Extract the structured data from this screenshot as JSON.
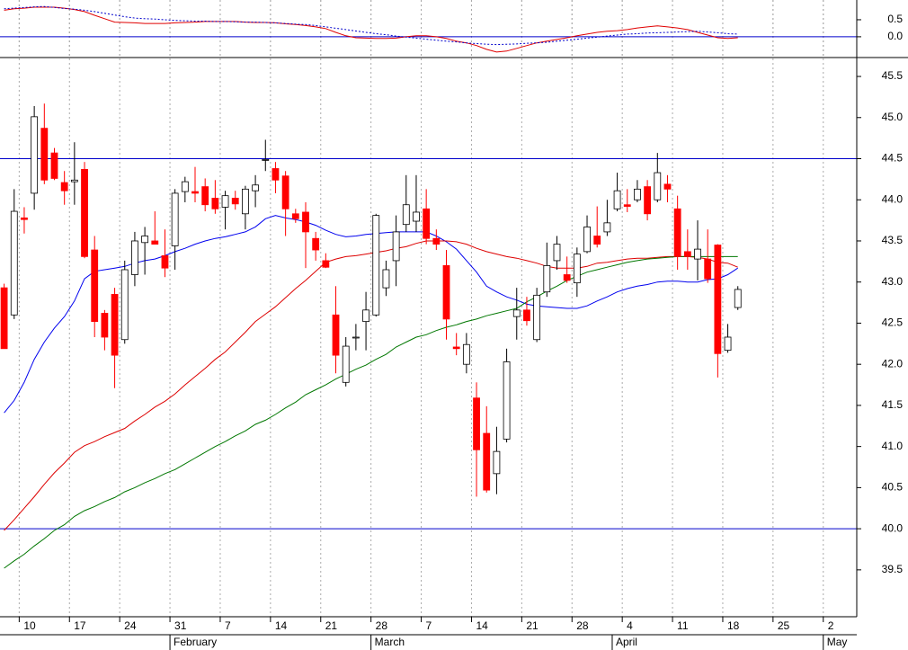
{
  "chart_data": [
    {
      "type": "line",
      "series": [
        {
          "color": "#e00000",
          "values": [
            0.78,
            0.82,
            0.84,
            0.87,
            0.87,
            0.87,
            0.84,
            0.8,
            0.74,
            0.63,
            0.53,
            0.43,
            0.42,
            0.41,
            0.39,
            0.39,
            0.39,
            0.41,
            0.42,
            0.43,
            0.45,
            0.45,
            0.45,
            0.45,
            0.43,
            0.42,
            0.42,
            0.41,
            0.38,
            0.36,
            0.33,
            0.29,
            0.24,
            0.13,
            0.03,
            -0.03,
            -0.04,
            -0.05,
            -0.05,
            -0.04,
            0,
            0.03,
            0.03,
            0,
            -0.05,
            -0.13,
            -0.18,
            -0.26,
            -0.37,
            -0.45,
            -0.42,
            -0.34,
            -0.26,
            -0.18,
            -0.13,
            -0.08,
            -0.03,
            0.03,
            0.08,
            0.13,
            0.16,
            0.18,
            0.21,
            0.26,
            0.29,
            0.32,
            0.29,
            0.26,
            0.21,
            0.13,
            0.05,
            -0.03,
            -0.05,
            -0.03,
            null,
            null,
            null,
            null,
            null,
            null,
            null,
            null,
            null,
            null,
            null
          ]
        },
        {
          "color": "#0000cc",
          "dash": true,
          "values": [
            0.82,
            0.84,
            0.86,
            0.88,
            0.89,
            0.86,
            0.83,
            0.81,
            0.78,
            0.74,
            0.69,
            0.64,
            0.59,
            0.55,
            0.53,
            0.52,
            0.5,
            0.48,
            0.47,
            0.46,
            0.46,
            0.45,
            0.45,
            0.44,
            0.43,
            0.43,
            0.42,
            0.41,
            0.39,
            0.37,
            0.36,
            0.33,
            0.29,
            0.25,
            0.21,
            0.17,
            0.13,
            0.09,
            0.06,
            0.02,
            -0.01,
            -0.04,
            -0.07,
            -0.1,
            -0.13,
            -0.15,
            -0.18,
            -0.2,
            -0.22,
            -0.23,
            -0.22,
            -0.21,
            -0.19,
            -0.18,
            -0.16,
            -0.13,
            -0.1,
            -0.07,
            -0.04,
            -0.01,
            0.02,
            0.05,
            0.08,
            0.09,
            0.11,
            0.12,
            0.13,
            0.14,
            0.15,
            0.16,
            0.14,
            0.12,
            0.09,
            0.08,
            null,
            null,
            null,
            null,
            null,
            null,
            null,
            null,
            null,
            null,
            null
          ]
        }
      ],
      "ylim": [
        -0.61,
        1.08
      ],
      "yticks": [
        0.5,
        {
          "value": 0,
          "label": "0.0"
        }
      ],
      "hlines": [
        0
      ],
      "hline_color": "#0000cc",
      "grid": "x"
    },
    {
      "type": "candlestick",
      "categories": [
        null,
        null,
        "10",
        null,
        null,
        null,
        null,
        "17",
        null,
        null,
        null,
        null,
        "24",
        null,
        null,
        null,
        null,
        "31",
        null,
        null,
        null,
        null,
        "7",
        null,
        null,
        null,
        null,
        "14",
        null,
        null,
        null,
        null,
        "21",
        null,
        null,
        null,
        null,
        "28",
        null,
        null,
        null,
        null,
        "7",
        null,
        null,
        null,
        null,
        "14",
        null,
        null,
        null,
        null,
        "21",
        null,
        null,
        null,
        null,
        "28",
        null,
        null,
        null,
        null,
        "4",
        null,
        null,
        null,
        null,
        "11",
        null,
        null,
        null,
        null,
        "18",
        null,
        null,
        null,
        null,
        "25",
        null,
        null,
        null,
        null,
        "2",
        null,
        null
      ],
      "month_labels": [
        null,
        null,
        null,
        null,
        null,
        null,
        null,
        null,
        null,
        null,
        null,
        null,
        null,
        null,
        null,
        null,
        null,
        "February",
        null,
        null,
        null,
        null,
        null,
        null,
        null,
        null,
        null,
        null,
        null,
        null,
        null,
        null,
        null,
        null,
        null,
        null,
        null,
        "March",
        null,
        null,
        null,
        null,
        null,
        null,
        null,
        null,
        null,
        null,
        null,
        null,
        null,
        null,
        null,
        null,
        null,
        null,
        null,
        null,
        null,
        null,
        null,
        "April",
        null,
        null,
        null,
        null,
        null,
        null,
        null,
        null,
        null,
        null,
        null,
        null,
        null,
        null,
        null,
        null,
        null,
        null,
        null,
        null,
        "May",
        null,
        null
      ],
      "open": [
        42.93,
        42.6,
        43.78,
        44.08,
        44.87,
        44.57,
        44.21,
        44.22,
        44.37,
        43.39,
        42.62,
        42.85,
        42.3,
        43.09,
        43.48,
        43.5,
        43.32,
        43.44,
        44.1,
        44.1,
        44.16,
        44.02,
        43.91,
        44.02,
        43.83,
        44.11,
        44.48,
        44.38,
        44.29,
        43.83,
        43.85,
        43.53,
        43.26,
        42.6,
        41.78,
        42.32,
        42.52,
        42.6,
        42.93,
        43.26,
        43.7,
        43.74,
        43.89,
        43.53,
        43.2,
        42.21,
        42.0,
        41.59,
        41.16,
        40.67,
        41.09,
        42.58,
        42.66,
        42.3,
        42.88,
        43.26,
        43.09,
        42.99,
        43.37,
        43.56,
        43.61,
        43.89,
        43.94,
        44.0,
        44.16,
        44.0,
        44.19,
        43.89,
        43.37,
        43.28,
        43.28,
        43.45,
        42.17,
        42.69,
        null,
        null,
        null,
        null,
        null,
        null,
        null,
        null,
        null,
        null,
        null
      ],
      "high": [
        42.98,
        44.13,
        43.91,
        45.14,
        45.17,
        44.63,
        44.35,
        44.7,
        44.46,
        43.56,
        42.66,
        42.93,
        43.26,
        43.61,
        43.67,
        43.86,
        43.64,
        44.13,
        44.28,
        44.4,
        44.26,
        44.24,
        44.11,
        44.11,
        44.17,
        44.3,
        44.73,
        44.46,
        44.35,
        43.89,
        43.97,
        43.61,
        43.35,
        42.95,
        42.33,
        42.49,
        42.88,
        43.83,
        43.26,
        43.81,
        44.3,
        44.3,
        44.13,
        43.64,
        43.39,
        42.38,
        42.38,
        41.78,
        41.49,
        41.24,
        42.19,
        42.93,
        42.82,
        42.93,
        43.48,
        43.56,
        43.31,
        43.42,
        43.81,
        43.92,
        44.0,
        44.33,
        44.13,
        44.24,
        44.24,
        44.57,
        44.3,
        44.05,
        43.64,
        43.75,
        43.64,
        43.46,
        42.49,
        42.95,
        null,
        null,
        null,
        null,
        null,
        null,
        null,
        null,
        null,
        null,
        null
      ],
      "low": [
        42.19,
        42.55,
        43.59,
        43.88,
        44.19,
        44.24,
        43.94,
        43.94,
        43.29,
        42.33,
        42.17,
        41.71,
        42.25,
        42.95,
        43.09,
        43.46,
        43.06,
        43.15,
        43.97,
        43.97,
        43.86,
        43.83,
        43.64,
        43.88,
        43.64,
        43.91,
        44.35,
        44.08,
        43.56,
        43.72,
        43.17,
        43.26,
        43.17,
        41.89,
        41.73,
        42.17,
        42.17,
        42.58,
        42.83,
        42.95,
        43.61,
        43.61,
        43.46,
        43.39,
        42.3,
        42.11,
        41.89,
        40.39,
        40.44,
        40.42,
        41.05,
        42.3,
        42.47,
        42.27,
        42.82,
        43.15,
        42.99,
        42.82,
        43.35,
        43.42,
        43.56,
        43.86,
        43.85,
        43.97,
        43.75,
        43.97,
        43.97,
        43.15,
        43.15,
        43.02,
        42.99,
        41.84,
        42.14,
        42.66,
        null,
        null,
        null,
        null,
        null,
        null,
        null,
        null,
        null,
        null,
        null
      ],
      "close": [
        42.19,
        43.86,
        43.76,
        45.01,
        44.24,
        44.26,
        44.11,
        44.24,
        43.31,
        42.52,
        42.33,
        42.11,
        43.15,
        43.5,
        43.56,
        43.46,
        43.17,
        44.08,
        44.22,
        44.08,
        43.94,
        43.89,
        44.05,
        43.95,
        44.13,
        44.18,
        44.49,
        44.24,
        43.89,
        43.77,
        43.61,
        43.39,
        43.18,
        42.11,
        42.22,
        42.33,
        42.66,
        43.81,
        43.15,
        43.61,
        43.94,
        43.85,
        43.53,
        43.46,
        42.55,
        42.19,
        42.24,
        40.96,
        40.47,
        40.94,
        42.03,
        42.66,
        42.53,
        42.84,
        43.2,
        43.46,
        43.02,
        43.34,
        43.67,
        43.46,
        43.72,
        44.11,
        43.92,
        44.13,
        43.83,
        44.33,
        44.13,
        43.31,
        43.31,
        43.4,
        43.04,
        42.13,
        42.33,
        42.91,
        null,
        null,
        null,
        null,
        null,
        null,
        null,
        null,
        null,
        null,
        null
      ],
      "up_color": "#ffffff",
      "down_color": "#ff0000",
      "series": [
        {
          "color": "#0000ee",
          "values": [
            41.41,
            41.56,
            41.78,
            42.06,
            42.27,
            42.44,
            42.58,
            42.77,
            43.04,
            43.13,
            43.15,
            43.17,
            43.19,
            43.23,
            43.26,
            43.28,
            43.32,
            43.37,
            43.41,
            43.46,
            43.5,
            43.53,
            43.55,
            43.58,
            43.61,
            43.67,
            43.77,
            43.81,
            43.78,
            43.76,
            43.73,
            43.69,
            43.63,
            43.58,
            43.55,
            43.56,
            43.58,
            43.59,
            43.6,
            43.61,
            43.61,
            43.61,
            43.61,
            43.56,
            43.49,
            43.4,
            43.26,
            43.12,
            42.95,
            42.88,
            42.82,
            42.78,
            42.73,
            42.71,
            42.7,
            42.69,
            42.68,
            42.68,
            42.71,
            42.77,
            42.82,
            42.88,
            42.92,
            42.95,
            42.97,
            43.0,
            43.01,
            43.01,
            43.0,
            43.0,
            43.03,
            43.04,
            43.09,
            43.17,
            null,
            null,
            null,
            null,
            null,
            null,
            null,
            null,
            null,
            null,
            null
          ]
        },
        {
          "color": "#dd0000",
          "values": [
            39.98,
            40.11,
            40.25,
            40.39,
            40.54,
            40.68,
            40.8,
            40.93,
            41.01,
            41.06,
            41.12,
            41.17,
            41.22,
            41.31,
            41.39,
            41.48,
            41.55,
            41.64,
            41.75,
            41.85,
            41.95,
            42.06,
            42.15,
            42.27,
            42.39,
            42.52,
            42.61,
            42.7,
            42.81,
            42.92,
            43.02,
            43.13,
            43.24,
            43.28,
            43.31,
            43.32,
            43.34,
            43.36,
            43.38,
            43.41,
            43.43,
            43.47,
            43.5,
            43.5,
            43.5,
            43.49,
            43.46,
            43.41,
            43.37,
            43.34,
            43.31,
            43.29,
            43.26,
            43.23,
            43.19,
            43.17,
            43.17,
            43.17,
            43.19,
            43.23,
            43.24,
            43.26,
            43.28,
            43.29,
            43.29,
            43.3,
            43.31,
            43.31,
            43.31,
            43.3,
            43.28,
            43.24,
            43.23,
            43.18,
            null,
            null,
            null,
            null,
            null,
            null,
            null,
            null,
            null,
            null,
            null
          ]
        },
        {
          "color": "#007700",
          "values": [
            39.52,
            39.61,
            39.69,
            39.79,
            39.88,
            39.98,
            40.05,
            40.15,
            40.22,
            40.27,
            40.33,
            40.38,
            40.45,
            40.5,
            40.56,
            40.61,
            40.67,
            40.72,
            40.79,
            40.86,
            40.93,
            41.0,
            41.06,
            41.13,
            41.19,
            41.27,
            41.32,
            41.39,
            41.47,
            41.54,
            41.63,
            41.69,
            41.75,
            41.82,
            41.88,
            41.94,
            41.99,
            42.06,
            42.12,
            42.21,
            42.27,
            42.33,
            42.36,
            42.41,
            42.45,
            42.48,
            42.52,
            42.55,
            42.59,
            42.62,
            42.65,
            42.68,
            42.76,
            42.82,
            42.89,
            42.95,
            43.02,
            43.07,
            43.12,
            43.15,
            43.18,
            43.21,
            43.24,
            43.26,
            43.28,
            43.29,
            43.3,
            43.31,
            43.31,
            43.31,
            43.31,
            43.31,
            43.31,
            43.31,
            null,
            null,
            null,
            null,
            null,
            null,
            null,
            null,
            null,
            null,
            null
          ]
        }
      ],
      "ylim": [
        38.93,
        45.73
      ],
      "yticks": [
        39.5,
        {
          "value": 40,
          "label": "40.0"
        },
        40.5,
        {
          "value": 41,
          "label": "41.0"
        },
        41.5,
        {
          "value": 42,
          "label": "42.0"
        },
        42.5,
        {
          "value": 43,
          "label": "43.0"
        },
        43.5,
        {
          "value": 44,
          "label": "44.0"
        },
        44.5,
        {
          "value": 45,
          "label": "45.0"
        },
        45.5
      ],
      "hlines": [
        44.5,
        40
      ],
      "hline_color": "#0000cc",
      "grid": "x"
    }
  ]
}
